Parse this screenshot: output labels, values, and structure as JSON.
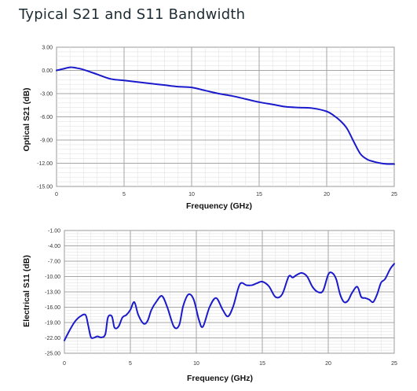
{
  "page": {
    "title": "Typical S21 and S11 Bandwidth"
  },
  "chart_data": [
    {
      "type": "line",
      "xlabel": "Frequency (GHz)",
      "ylabel": "Optical S21 (dB)",
      "xlim": [
        0,
        25
      ],
      "ylim": [
        -15,
        3
      ],
      "x_ticks": [
        "0",
        "5",
        "10",
        "15",
        "20",
        "25"
      ],
      "y_ticks": [
        "3.00",
        "0.00",
        "-3.00",
        "-6.00",
        "-9.00",
        "-12.00",
        "-15.00"
      ],
      "grid": true,
      "line_color": "#1a1acc",
      "series": [
        {
          "x": [
            0,
            0.5,
            1,
            1.5,
            2,
            3,
            4,
            5,
            6,
            7,
            8,
            9,
            10,
            11,
            12,
            13,
            14,
            15,
            16,
            17,
            18,
            19,
            20,
            20.5,
            21,
            21.5,
            22,
            22.5,
            23,
            23.5,
            24,
            24.5,
            25
          ],
          "y": [
            0.0,
            0.2,
            0.4,
            0.3,
            0.1,
            -0.5,
            -1.1,
            -1.3,
            -1.5,
            -1.7,
            -1.9,
            -2.1,
            -2.2,
            -2.6,
            -3.0,
            -3.3,
            -3.7,
            -4.1,
            -4.4,
            -4.7,
            -4.8,
            -4.9,
            -5.3,
            -5.8,
            -6.5,
            -7.5,
            -9.2,
            -10.8,
            -11.5,
            -11.8,
            -12.0,
            -12.1,
            -12.1
          ]
        }
      ]
    },
    {
      "type": "line",
      "xlabel": "Frequency  (GHz)",
      "ylabel": "Electrical S11 (dB)",
      "xlim": [
        0,
        25
      ],
      "ylim": [
        -25,
        -1
      ],
      "x_ticks": [
        "0",
        "5",
        "10",
        "15",
        "20",
        "25"
      ],
      "y_ticks": [
        "-1.00",
        "-4.00",
        "-7.00",
        "-10.00",
        "-13.00",
        "-16.00",
        "-19.00",
        "-22.00",
        "-25.00"
      ],
      "grid": true,
      "line_color": "#1a1acc",
      "series": [
        {
          "x": [
            0,
            0.4,
            0.8,
            1.2,
            1.6,
            1.8,
            2.0,
            2.2,
            2.5,
            2.8,
            3.1,
            3.3,
            3.6,
            3.8,
            4.1,
            4.4,
            4.7,
            5.0,
            5.3,
            5.6,
            6.0,
            6.3,
            6.6,
            7.0,
            7.4,
            7.8,
            8.3,
            8.7,
            9.0,
            9.4,
            9.8,
            10.2,
            10.5,
            11.0,
            11.5,
            12.0,
            12.4,
            12.8,
            13.3,
            13.8,
            14.2,
            14.6,
            15.0,
            15.5,
            16.0,
            16.5,
            17.0,
            17.3,
            17.6,
            18.0,
            18.4,
            18.8,
            19.2,
            19.6,
            20.0,
            20.3,
            20.6,
            20.9,
            21.2,
            21.5,
            21.8,
            22.2,
            22.5,
            22.8,
            23.1,
            23.4,
            23.7,
            24.0,
            24.3,
            24.7,
            25.0
          ],
          "y": [
            -22.5,
            -20.5,
            -18.8,
            -17.8,
            -17.5,
            -19.5,
            -21.8,
            -22.0,
            -21.7,
            -21.9,
            -21.3,
            -18.0,
            -17.8,
            -20.0,
            -19.8,
            -18.0,
            -17.5,
            -16.5,
            -15.0,
            -17.5,
            -19.2,
            -18.7,
            -16.5,
            -14.8,
            -13.8,
            -16.0,
            -19.8,
            -19.5,
            -15.8,
            -13.5,
            -14.5,
            -18.5,
            -19.8,
            -16.0,
            -14.2,
            -16.5,
            -17.8,
            -15.8,
            -11.5,
            -11.7,
            -11.7,
            -11.3,
            -11.0,
            -11.9,
            -14.0,
            -13.5,
            -10.0,
            -10.2,
            -9.7,
            -9.3,
            -10.0,
            -12.0,
            -13.0,
            -12.8,
            -9.6,
            -9.3,
            -10.5,
            -13.5,
            -15.0,
            -14.7,
            -13.2,
            -12.0,
            -14.0,
            -14.2,
            -14.5,
            -15.0,
            -13.5,
            -11.2,
            -10.5,
            -8.5,
            -7.5
          ]
        }
      ]
    }
  ]
}
